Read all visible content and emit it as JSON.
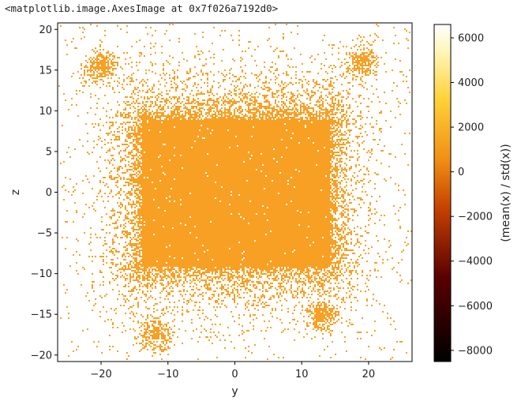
{
  "output_text": "<matplotlib.image.AxesImage at 0x7f026a7192d0>",
  "chart_data": {
    "type": "heatmap",
    "xlabel": "y",
    "ylabel": "z",
    "xlim": [
      -26.5,
      26.5
    ],
    "ylim": [
      -20.8,
      20.8
    ],
    "xticks": [
      -20,
      -10,
      0,
      10,
      20
    ],
    "xtick_labels": [
      "−20",
      "−10",
      "0",
      "10",
      "20"
    ],
    "yticks": [
      -20,
      -15,
      -10,
      -5,
      0,
      5,
      10,
      15,
      20
    ],
    "ytick_labels": [
      "−20",
      "−15",
      "−10",
      "−5",
      "0",
      "5",
      "10",
      "15",
      "20"
    ],
    "colormap": "afmhot",
    "fill_color": "#f8a024",
    "colorbar": {
      "label": "(mean(x) / std(x))",
      "range": [
        -8500,
        6600
      ],
      "ticks": [
        -8000,
        -6000,
        -4000,
        -2000,
        0,
        2000,
        4000,
        6000
      ],
      "tick_labels": [
        "−8000",
        "−6000",
        "−4000",
        "−2000",
        "0",
        "2000",
        "4000",
        "6000"
      ]
    },
    "dense_core": {
      "y_range": [
        -14,
        14
      ],
      "z_range": [
        -9,
        9
      ]
    },
    "scattered_halo": {
      "y_range": [
        -26,
        26
      ],
      "z_range": [
        -20,
        18
      ]
    },
    "lobes": [
      {
        "y": -20,
        "z": 15.5
      },
      {
        "y": 19,
        "z": 16
      },
      {
        "y": -12,
        "z": -17.5
      },
      {
        "y": 13,
        "z": -15
      }
    ]
  }
}
